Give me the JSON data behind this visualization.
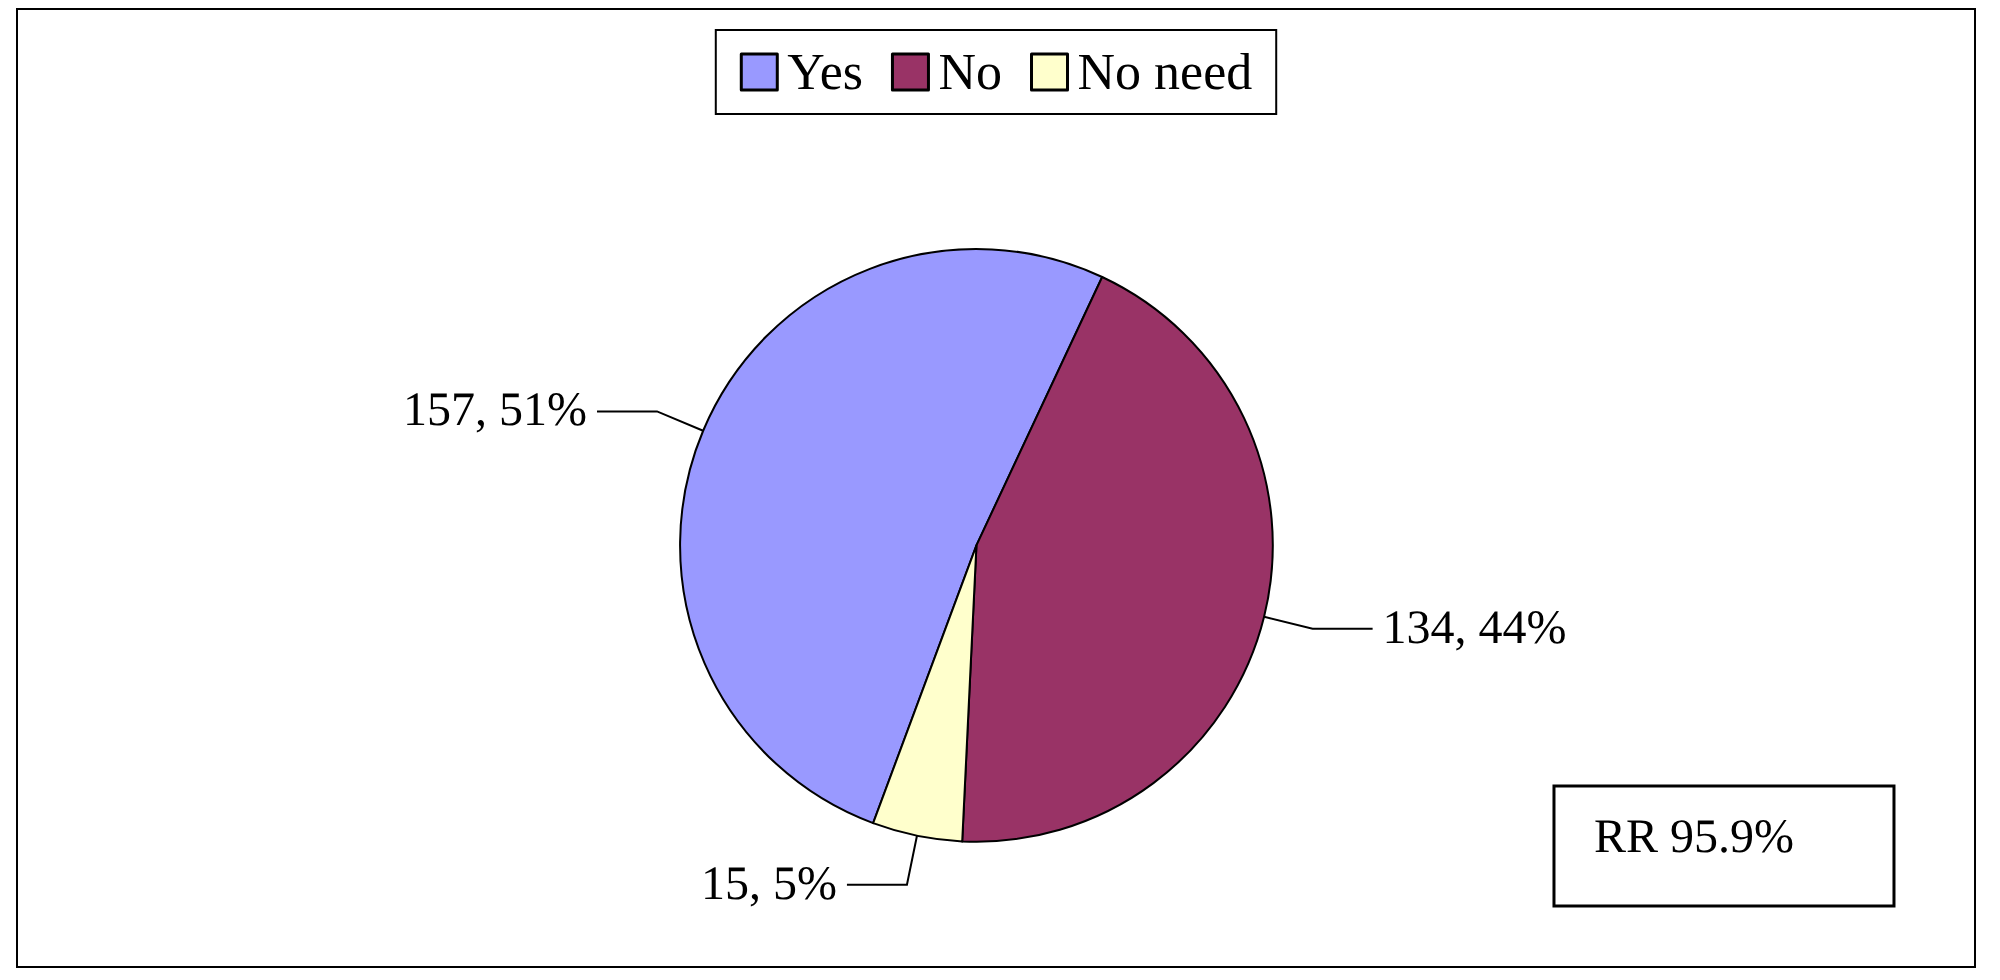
{
  "chart_data": {
    "type": "pie",
    "categories": [
      "Yes",
      "No",
      "No need"
    ],
    "values": [
      157,
      134,
      15
    ],
    "colors": [
      "#9999ff",
      "#993366",
      "#ffffcc"
    ],
    "value_labels": [
      "157, 51%",
      "134, 44%",
      "15, 5%"
    ],
    "legend": "top",
    "annotations": [
      "RR 95.9%"
    ]
  }
}
